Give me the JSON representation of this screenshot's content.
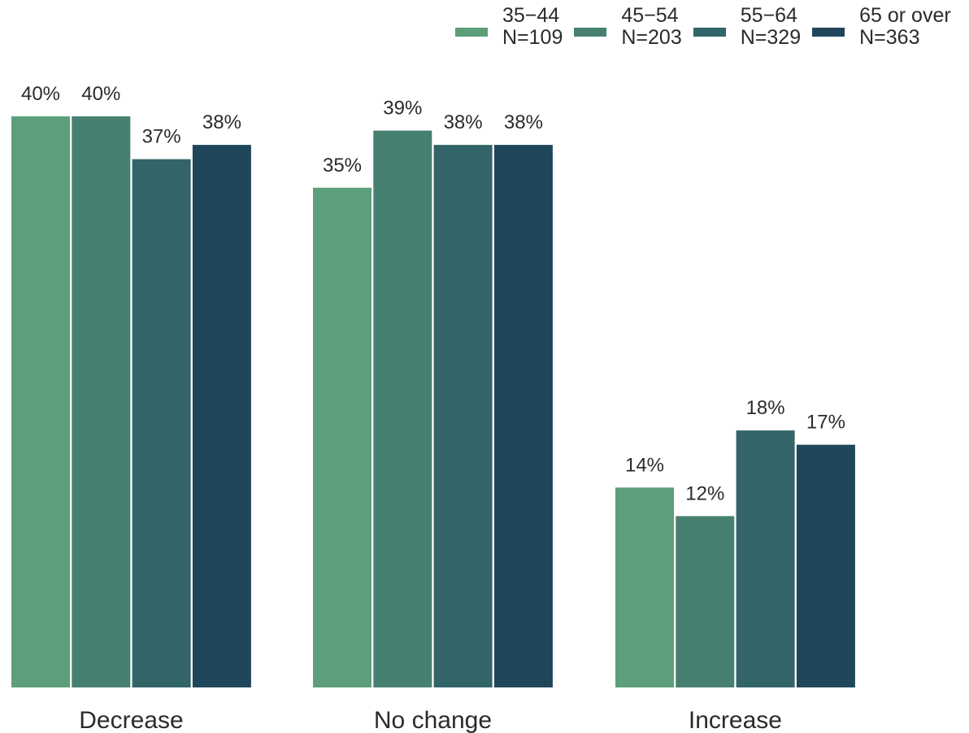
{
  "chart_data": {
    "type": "bar",
    "categories": [
      "Decrease",
      "No change",
      "Increase"
    ],
    "series": [
      {
        "name": "35−44",
        "n_label": "N=109",
        "color": "#5c9f7a",
        "values": [
          40,
          35,
          14
        ],
        "labels": [
          "40%",
          "35%",
          "14%"
        ]
      },
      {
        "name": "45−54",
        "n_label": "N=203",
        "color": "#478070",
        "values": [
          40,
          39,
          12
        ],
        "labels": [
          "40%",
          "39%",
          "12%"
        ]
      },
      {
        "name": "55−64",
        "n_label": "N=329",
        "color": "#336568",
        "values": [
          37,
          38,
          18
        ],
        "labels": [
          "37%",
          "38%",
          "18%"
        ]
      },
      {
        "name": "65 or over",
        "n_label": "N=363",
        "color": "#20465b",
        "values": [
          38,
          38,
          17
        ],
        "labels": [
          "38%",
          "38%",
          "17%"
        ]
      }
    ],
    "value_format": "percent",
    "ylim": [
      0,
      40
    ],
    "grid": false,
    "legend_position": "top-right",
    "title": "",
    "xlabel": "",
    "ylabel": ""
  }
}
